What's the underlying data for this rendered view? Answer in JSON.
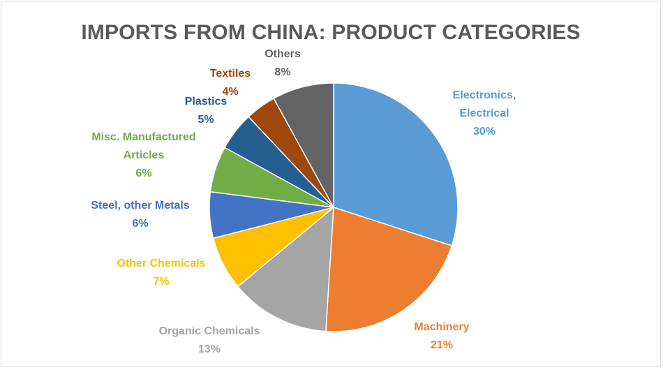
{
  "chart_data": {
    "type": "pie",
    "title": "IMPORTS FROM CHINA: PRODUCT CATEGORIES",
    "slices": [
      {
        "name": "Electronics, Electrical",
        "value": 30,
        "label": "30%",
        "color": "#5b9bd5",
        "text_color": "#5b9bd5"
      },
      {
        "name": "Machinery",
        "value": 21,
        "label": "21%",
        "color": "#ed7d31",
        "text_color": "#ed7d31"
      },
      {
        "name": "Organic Chemicals",
        "value": 13,
        "label": "13%",
        "color": "#a5a5a5",
        "text_color": "#a5a5a5"
      },
      {
        "name": "Other Chemicals",
        "value": 7,
        "label": "7%",
        "color": "#ffc000",
        "text_color": "#ffc000"
      },
      {
        "name": "Steel, other Metals",
        "value": 6,
        "label": "6%",
        "color": "#4472c4",
        "text_color": "#4472c4"
      },
      {
        "name": "Misc. Manufactured Articles",
        "value": 6,
        "label": "6%",
        "color": "#70ad47",
        "text_color": "#70ad47"
      },
      {
        "name": "Plastics",
        "value": 5,
        "label": "5%",
        "color": "#255e91",
        "text_color": "#255e91"
      },
      {
        "name": "Textiles",
        "value": 4,
        "label": "4%",
        "color": "#9e480e",
        "text_color": "#9e480e"
      },
      {
        "name": "Others",
        "value": 8,
        "label": "8%",
        "color": "#636363",
        "text_color": "#636363"
      }
    ]
  }
}
